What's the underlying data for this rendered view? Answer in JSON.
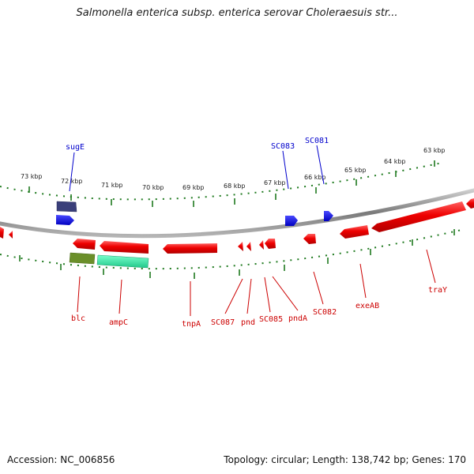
{
  "title": "Salmonella enterica subsp. enterica serovar Choleraesuis str...",
  "footer": {
    "accession": "Accession: NC_006856",
    "stats": "Topology: circular; Length: 138,742 bp; Genes: 170"
  },
  "colors": {
    "backbone": "#8a8a8a",
    "ticks": "#1f7a1f",
    "forward_gene": "#0000ee",
    "reverse_gene": "#ee0000",
    "forward_label": "#0000cc",
    "reverse_label": "#cc0000",
    "other_dark": "#3a3f7a",
    "other_olive": "#6b8f2a",
    "other_aqua": "#3ee8a8"
  },
  "ticks": [
    "73 kbp",
    "72 kbp",
    "71 kbp",
    "70 kbp",
    "69 kbp",
    "68 kbp",
    "67 kbp",
    "66 kbp",
    "65 kbp",
    "64 kbp",
    "63 kbp"
  ],
  "forward_labels": [
    "sugE",
    "SC083",
    "SC081"
  ],
  "reverse_labels": [
    "blc",
    "ampC",
    "tnpA",
    "SC087",
    "pnd",
    "SC085",
    "pndA",
    "SC082",
    "exeAB",
    "traY"
  ]
}
